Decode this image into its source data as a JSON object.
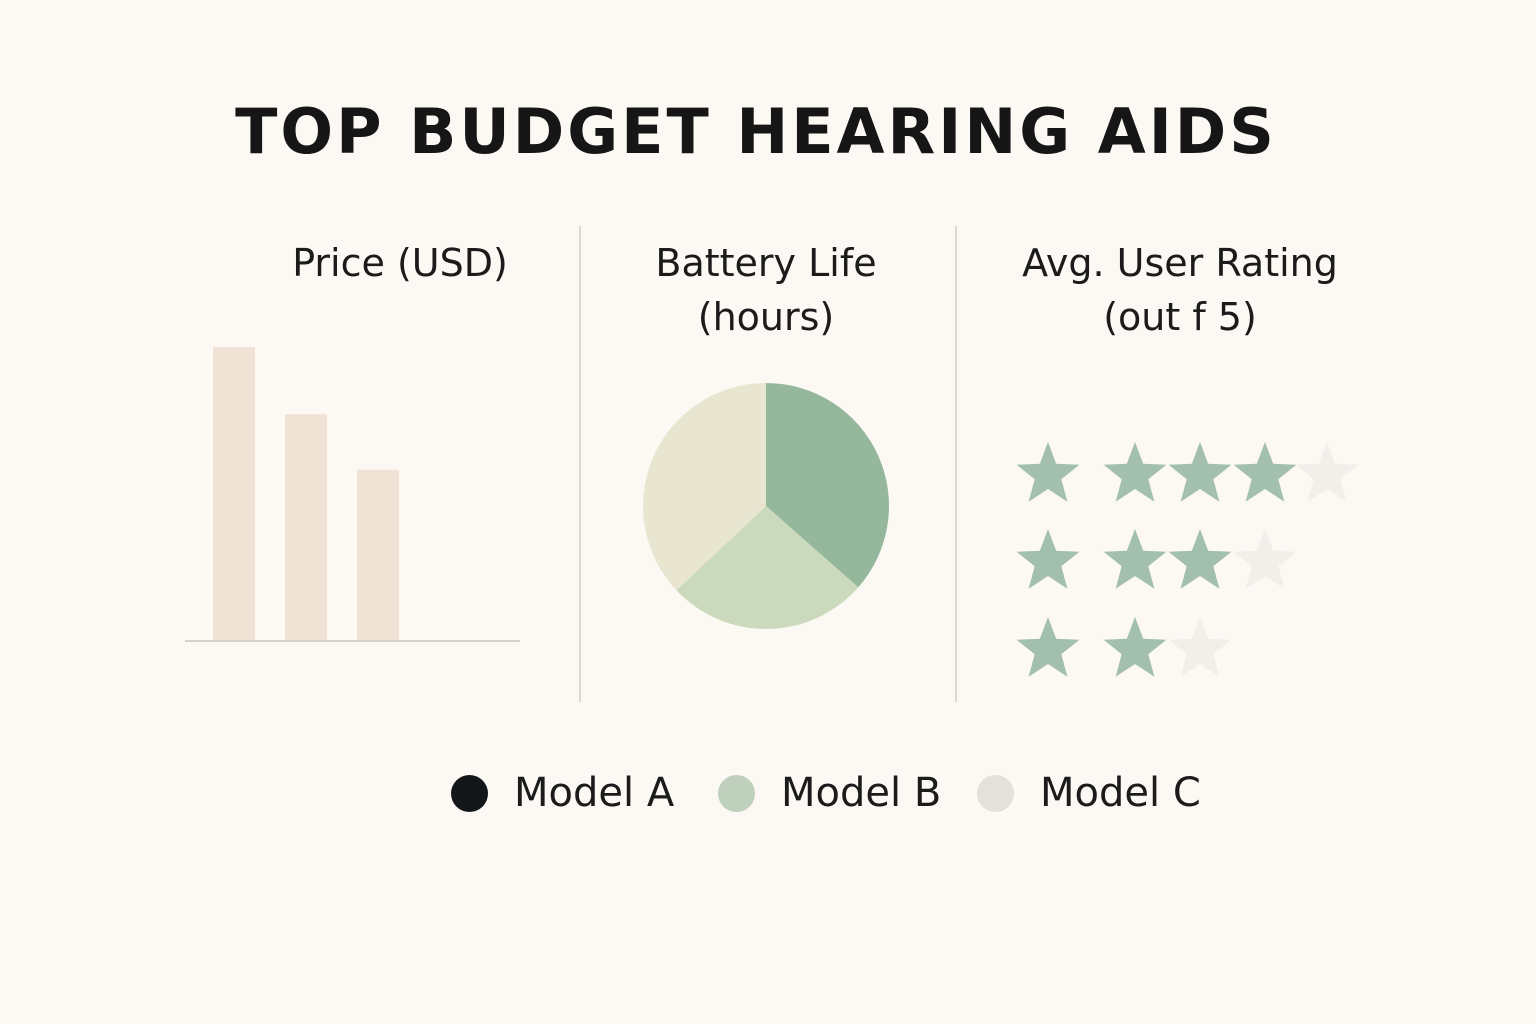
{
  "title": "TOP BUDGET HEARING AIDS",
  "colors": {
    "background": "#fcf8f3",
    "bar": "#f0e3d5",
    "baseline": "#d8d2ca",
    "star_filled": "#a3bfae",
    "star_empty": "#f1efea",
    "pie": [
      "#95b89d",
      "#cbd9bc",
      "#e8e6d1"
    ]
  },
  "panels": {
    "price_title": "Price (USD)",
    "battery_title": "Battery Life\n(hours)",
    "rating_title": "Avg. User Rating\n(out f 5)"
  },
  "legend": [
    {
      "label": "Model A",
      "color": "#141719"
    },
    {
      "label": "Model B",
      "color": "#bfd0bd"
    },
    {
      "label": "Model C",
      "color": "#e4e0da"
    }
  ],
  "chart_data": [
    {
      "type": "bar",
      "title": "Price (USD)",
      "categories": [
        "Model A",
        "Model B",
        "Model C"
      ],
      "values": [
        297,
        229,
        173
      ],
      "ylim": [
        0,
        300
      ],
      "grid": false
    },
    {
      "type": "pie",
      "title": "Battery Life (hours)",
      "categories": [
        "Model A",
        "Model B",
        "Model C"
      ],
      "values": [
        36.5,
        26.5,
        37
      ]
    },
    {
      "type": "table",
      "title": "Avg. User Rating (out f 5)",
      "categories": [
        "Model A",
        "Model B",
        "Model C"
      ],
      "values": [
        4,
        3,
        2
      ],
      "max": 5,
      "display": "stars"
    }
  ]
}
